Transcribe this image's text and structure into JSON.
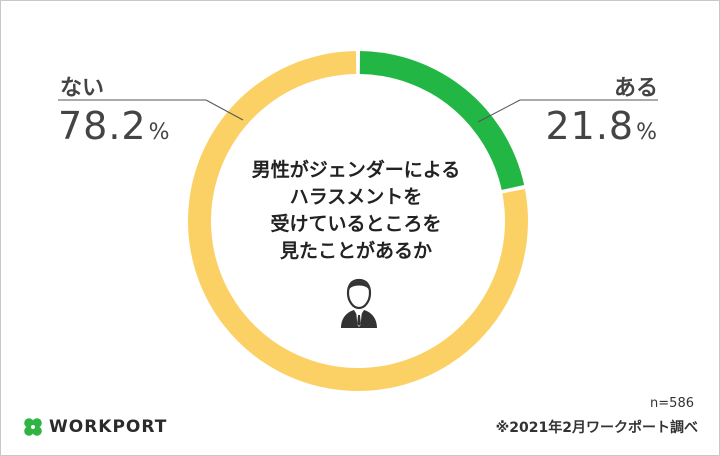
{
  "chart_data": {
    "type": "pie",
    "donut": true,
    "categories": [
      "ある",
      "ない"
    ],
    "values": [
      21.8,
      78.2
    ],
    "unit": "%",
    "colors": [
      "#22b745",
      "#fbd166"
    ],
    "center_text": [
      "男性がジェンダーによる",
      "ハラスメントを",
      "受けているところを",
      "見たことがあるか"
    ],
    "center_icon": "businessman-icon"
  },
  "labels": {
    "yes": {
      "name": "ある",
      "value": "21.8",
      "unit": "%"
    },
    "no": {
      "name": "ない",
      "value": "78.2",
      "unit": "%"
    }
  },
  "footer": {
    "sample_size": "n=586",
    "source": "※2021年2月ワークポート調べ",
    "brand": "WORKPORT",
    "brand_icon": "clover-icon"
  }
}
